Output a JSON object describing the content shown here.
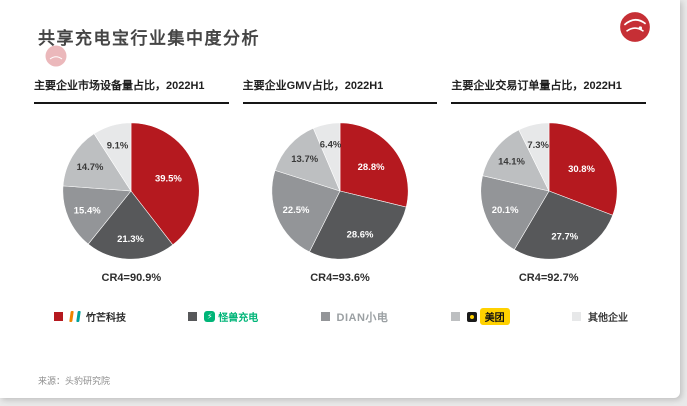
{
  "page": {
    "title": "共享充电宝行业集中度分析",
    "source": "来源：头豹研究院"
  },
  "colors": {
    "red": "#b5191f",
    "dark_gray": "#57585a",
    "mid_gray": "#939598",
    "light_gray": "#bdbfc1",
    "lighter_gray": "#e7e8e9",
    "label_light": "#ffffff",
    "label_dark": "#3a3a3a",
    "underline": "#161616",
    "meituan_yellow": "#ffd100",
    "monster_green": "#00b578"
  },
  "pie_colors": [
    "#b5191f",
    "#57585a",
    "#939598",
    "#bdbfc1",
    "#e7e8e9"
  ],
  "legend": [
    {
      "name": "竹芒科技",
      "swatch": "#b5191f"
    },
    {
      "name": "怪兽充电",
      "swatch": "#57585a"
    },
    {
      "name": "DIAN小电",
      "swatch": "#939598"
    },
    {
      "name": "美团",
      "swatch": "#bdbfc1"
    },
    {
      "name": "其他企业",
      "swatch": "#e7e8e9"
    }
  ],
  "chart_data": [
    {
      "type": "pie",
      "title": "主要企业市场设备量占比，2022H1",
      "labels": [
        "竹芒科技",
        "怪兽充电",
        "小电",
        "美团",
        "其他企业"
      ],
      "values": [
        39.5,
        21.3,
        15.4,
        14.7,
        9.1
      ],
      "cr4": "CR4=90.9%",
      "legend_position": "bottom-shared"
    },
    {
      "type": "pie",
      "title": "主要企业GMV占比，2022H1",
      "labels": [
        "竹芒科技",
        "怪兽充电",
        "小电",
        "美团",
        "其他企业"
      ],
      "values": [
        28.8,
        28.6,
        22.5,
        13.7,
        6.4
      ],
      "cr4": "CR4=93.6%",
      "legend_position": "bottom-shared"
    },
    {
      "type": "pie",
      "title": "主要企业交易订单量占比，2022H1",
      "labels": [
        "竹芒科技",
        "怪兽充电",
        "小电",
        "美团",
        "其他企业"
      ],
      "values": [
        30.8,
        27.7,
        20.1,
        14.1,
        7.3
      ],
      "cr4": "CR4=92.7%",
      "legend_position": "bottom-shared"
    }
  ]
}
